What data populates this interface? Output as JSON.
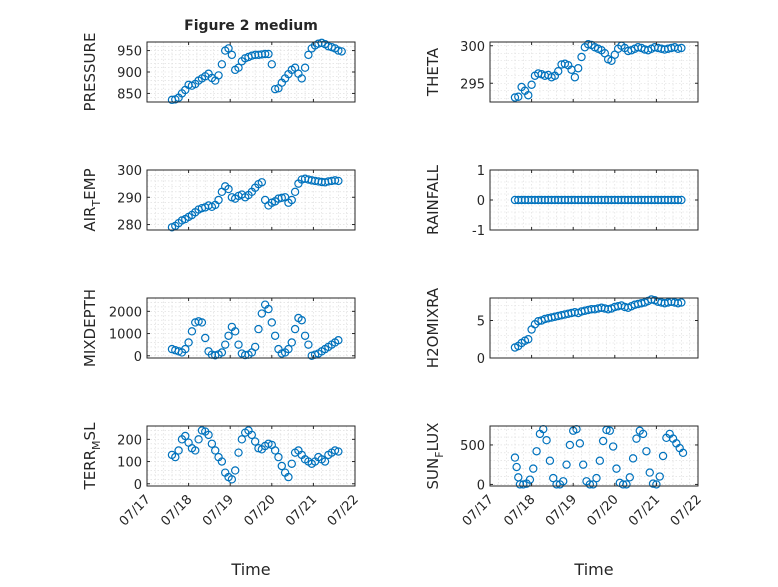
{
  "figure": {
    "title": "Figure 2 medium",
    "xlabel": "Time",
    "xticks": [
      "07/17",
      "07/18",
      "07/19",
      "07/20",
      "07/21",
      "07/22"
    ]
  },
  "chart_data": [
    {
      "type": "scatter",
      "title": "Figure 2 medium",
      "ylabel": "PRESSURE",
      "xlabel": "",
      "xlim": [
        0,
        5
      ],
      "ylim": [
        830,
        970
      ],
      "yticks": [
        850,
        900,
        950
      ],
      "ytick_labels": [
        "850",
        "900",
        "950"
      ],
      "grid": true,
      "color": "#0072bd",
      "x": [
        0.6,
        0.68,
        0.76,
        0.84,
        0.92,
        1.0,
        1.08,
        1.16,
        1.24,
        1.32,
        1.4,
        1.48,
        1.56,
        1.64,
        1.72,
        1.8,
        1.88,
        1.96,
        2.04,
        2.12,
        2.2,
        2.28,
        2.36,
        2.44,
        2.52,
        2.6,
        2.68,
        2.76,
        2.84,
        2.92,
        3.0,
        3.08,
        3.16,
        3.24,
        3.32,
        3.4,
        3.48,
        3.56,
        3.64,
        3.72,
        3.8,
        3.88,
        3.96,
        4.04,
        4.12,
        4.2,
        4.28,
        4.36,
        4.44,
        4.52,
        4.6,
        4.68
      ],
      "y": [
        835,
        836,
        840,
        850,
        858,
        870,
        868,
        872,
        880,
        885,
        890,
        896,
        886,
        880,
        892,
        918,
        950,
        955,
        940,
        905,
        910,
        925,
        932,
        935,
        938,
        940,
        940,
        941,
        942,
        942,
        918,
        860,
        862,
        875,
        885,
        895,
        905,
        910,
        896,
        885,
        910,
        940,
        955,
        962,
        966,
        968,
        965,
        960,
        958,
        955,
        950,
        948
      ]
    },
    {
      "type": "scatter",
      "ylabel": "THETA",
      "xlim": [
        0,
        5
      ],
      "ylim": [
        292.5,
        300.5
      ],
      "yticks": [
        295,
        300
      ],
      "ytick_labels": [
        "295",
        "300"
      ],
      "grid": true,
      "color": "#0072bd",
      "x": [
        0.6,
        0.68,
        0.76,
        0.84,
        0.92,
        1.0,
        1.08,
        1.16,
        1.24,
        1.32,
        1.4,
        1.48,
        1.56,
        1.64,
        1.72,
        1.8,
        1.88,
        1.96,
        2.04,
        2.12,
        2.2,
        2.28,
        2.36,
        2.44,
        2.52,
        2.6,
        2.68,
        2.76,
        2.84,
        2.92,
        3.0,
        3.08,
        3.16,
        3.24,
        3.32,
        3.4,
        3.48,
        3.56,
        3.64,
        3.72,
        3.8,
        3.88,
        3.96,
        4.04,
        4.12,
        4.2,
        4.28,
        4.36,
        4.44,
        4.52,
        4.6
      ],
      "y": [
        293.1,
        293.2,
        294.5,
        294.0,
        293.4,
        294.8,
        296.0,
        296.3,
        296.2,
        296.0,
        296.1,
        295.8,
        296.0,
        296.6,
        297.5,
        297.6,
        297.4,
        296.8,
        295.8,
        297.0,
        298.5,
        299.8,
        300.2,
        300.1,
        299.8,
        299.6,
        299.4,
        299.0,
        298.2,
        298.0,
        298.8,
        299.6,
        300.0,
        299.7,
        299.3,
        299.4,
        299.6,
        299.8,
        299.7,
        299.5,
        299.4,
        299.6,
        299.8,
        299.7,
        299.6,
        299.5,
        299.6,
        299.7,
        299.8,
        299.6,
        299.7
      ]
    },
    {
      "type": "scatter",
      "ylabel": "AIR_TEMP",
      "ylabel_main": "AIR",
      "ylabel_sub": "T",
      "ylabel_rest": "EMP",
      "xlim": [
        0,
        5
      ],
      "ylim": [
        278,
        300
      ],
      "yticks": [
        280,
        290,
        300
      ],
      "ytick_labels": [
        "280",
        "290",
        "300"
      ],
      "grid": true,
      "color": "#0072bd",
      "x": [
        0.6,
        0.68,
        0.76,
        0.84,
        0.92,
        1.0,
        1.08,
        1.16,
        1.24,
        1.32,
        1.4,
        1.48,
        1.56,
        1.64,
        1.72,
        1.8,
        1.88,
        1.96,
        2.04,
        2.12,
        2.2,
        2.28,
        2.36,
        2.44,
        2.52,
        2.6,
        2.68,
        2.76,
        2.84,
        2.92,
        3.0,
        3.08,
        3.16,
        3.24,
        3.32,
        3.4,
        3.48,
        3.56,
        3.64,
        3.72,
        3.8,
        3.88,
        3.96,
        4.04,
        4.12,
        4.2,
        4.28,
        4.36,
        4.44,
        4.52,
        4.6
      ],
      "y": [
        279,
        279.5,
        280.5,
        281.5,
        282.0,
        282.8,
        283.5,
        284.5,
        285.5,
        286.0,
        286.3,
        287.0,
        286.5,
        287.2,
        289.0,
        292.0,
        294.0,
        293.0,
        290.0,
        289.5,
        290.5,
        291.0,
        290.0,
        290.8,
        292.0,
        293.5,
        294.8,
        295.5,
        289.0,
        287.0,
        288.0,
        288.5,
        289.5,
        289.8,
        290.0,
        288.0,
        289.0,
        292.0,
        295.0,
        296.5,
        296.8,
        296.5,
        296.2,
        296.0,
        295.8,
        295.6,
        295.5,
        295.8,
        296.0,
        296.2,
        296.0
      ]
    },
    {
      "type": "scatter",
      "ylabel": "RAINFALL",
      "xlim": [
        0,
        5
      ],
      "ylim": [
        -1,
        1
      ],
      "yticks": [
        -1,
        0,
        1
      ],
      "ytick_labels": [
        "-1",
        "0",
        "1"
      ],
      "grid": true,
      "color": "#0072bd",
      "x": [
        0.6,
        0.68,
        0.76,
        0.84,
        0.92,
        1.0,
        1.08,
        1.16,
        1.24,
        1.32,
        1.4,
        1.48,
        1.56,
        1.64,
        1.72,
        1.8,
        1.88,
        1.96,
        2.04,
        2.12,
        2.2,
        2.28,
        2.36,
        2.44,
        2.52,
        2.6,
        2.68,
        2.76,
        2.84,
        2.92,
        3.0,
        3.08,
        3.16,
        3.24,
        3.32,
        3.4,
        3.48,
        3.56,
        3.64,
        3.72,
        3.8,
        3.88,
        3.96,
        4.04,
        4.12,
        4.2,
        4.28,
        4.36,
        4.44,
        4.52,
        4.6
      ],
      "y": [
        0,
        0,
        0,
        0,
        0,
        0,
        0,
        0,
        0,
        0,
        0,
        0,
        0,
        0,
        0,
        0,
        0,
        0,
        0,
        0,
        0,
        0,
        0,
        0,
        0,
        0,
        0,
        0,
        0,
        0,
        0,
        0,
        0,
        0,
        0,
        0,
        0,
        0,
        0,
        0,
        0,
        0,
        0,
        0,
        0,
        0,
        0,
        0,
        0,
        0,
        0
      ]
    },
    {
      "type": "scatter",
      "ylabel": "MIXDEPTH",
      "xlim": [
        0,
        5
      ],
      "ylim": [
        -100,
        2600
      ],
      "yticks": [
        0,
        1000,
        2000
      ],
      "ytick_labels": [
        "0",
        "1000",
        "2000"
      ],
      "grid": true,
      "color": "#0072bd",
      "x": [
        0.6,
        0.68,
        0.76,
        0.84,
        0.92,
        1.0,
        1.08,
        1.16,
        1.24,
        1.32,
        1.4,
        1.48,
        1.56,
        1.64,
        1.72,
        1.8,
        1.88,
        1.96,
        2.04,
        2.12,
        2.2,
        2.28,
        2.36,
        2.44,
        2.52,
        2.6,
        2.68,
        2.76,
        2.84,
        2.92,
        3.0,
        3.08,
        3.16,
        3.24,
        3.32,
        3.4,
        3.48,
        3.56,
        3.64,
        3.72,
        3.8,
        3.88,
        3.96,
        4.04,
        4.12,
        4.2,
        4.28,
        4.36,
        4.44,
        4.52,
        4.6
      ],
      "y": [
        300,
        250,
        200,
        150,
        300,
        600,
        1100,
        1500,
        1550,
        1500,
        800,
        200,
        50,
        20,
        60,
        150,
        500,
        900,
        1300,
        1100,
        500,
        100,
        30,
        50,
        150,
        400,
        1200,
        1900,
        2300,
        2100,
        1500,
        900,
        300,
        100,
        150,
        300,
        600,
        1200,
        1700,
        1600,
        900,
        500,
        0,
        50,
        100,
        200,
        300,
        400,
        500,
        600,
        700
      ]
    },
    {
      "type": "scatter",
      "ylabel": "H2OMIXRA",
      "xlim": [
        0,
        5
      ],
      "ylim": [
        0,
        8
      ],
      "yticks": [
        0,
        5
      ],
      "ytick_labels": [
        "0",
        "5"
      ],
      "grid": true,
      "color": "#0072bd",
      "x": [
        0.6,
        0.68,
        0.76,
        0.84,
        0.92,
        1.0,
        1.08,
        1.16,
        1.24,
        1.32,
        1.4,
        1.48,
        1.56,
        1.64,
        1.72,
        1.8,
        1.88,
        1.96,
        2.04,
        2.12,
        2.2,
        2.28,
        2.36,
        2.44,
        2.52,
        2.6,
        2.68,
        2.76,
        2.84,
        2.92,
        3.0,
        3.08,
        3.16,
        3.24,
        3.32,
        3.4,
        3.48,
        3.56,
        3.64,
        3.72,
        3.8,
        3.88,
        3.96,
        4.04,
        4.12,
        4.2,
        4.28,
        4.36,
        4.44,
        4.52,
        4.6
      ],
      "y": [
        1.4,
        1.6,
        2.0,
        2.3,
        2.5,
        3.8,
        4.5,
        4.9,
        5.0,
        5.2,
        5.3,
        5.4,
        5.5,
        5.6,
        5.7,
        5.8,
        5.9,
        6.0,
        6.1,
        6.0,
        6.2,
        6.3,
        6.4,
        6.5,
        6.5,
        6.6,
        6.7,
        6.6,
        6.5,
        6.6,
        6.8,
        6.9,
        7.0,
        6.8,
        6.7,
        6.9,
        7.1,
        7.2,
        7.3,
        7.4,
        7.6,
        7.8,
        7.7,
        7.5,
        7.4,
        7.3,
        7.4,
        7.5,
        7.4,
        7.3,
        7.4
      ]
    },
    {
      "type": "scatter",
      "ylabel": "TERR_MSL",
      "ylabel_main": "TERR",
      "ylabel_sub": "M",
      "ylabel_rest": "SL",
      "xlim": [
        0,
        5
      ],
      "ylim": [
        -10,
        260
      ],
      "yticks": [
        0,
        100,
        200
      ],
      "ytick_labels": [
        "0",
        "100",
        "200"
      ],
      "grid": true,
      "color": "#0072bd",
      "x": [
        0.6,
        0.68,
        0.76,
        0.84,
        0.92,
        1.0,
        1.08,
        1.16,
        1.24,
        1.32,
        1.4,
        1.48,
        1.56,
        1.64,
        1.72,
        1.8,
        1.88,
        1.96,
        2.04,
        2.12,
        2.2,
        2.28,
        2.36,
        2.44,
        2.52,
        2.6,
        2.68,
        2.76,
        2.84,
        2.92,
        3.0,
        3.08,
        3.16,
        3.24,
        3.32,
        3.4,
        3.48,
        3.56,
        3.64,
        3.72,
        3.8,
        3.88,
        3.96,
        4.04,
        4.12,
        4.2,
        4.28,
        4.36,
        4.44,
        4.52,
        4.6
      ],
      "y": [
        130,
        120,
        150,
        200,
        215,
        185,
        160,
        150,
        200,
        240,
        235,
        220,
        180,
        150,
        120,
        100,
        50,
        30,
        20,
        60,
        140,
        200,
        230,
        240,
        220,
        190,
        160,
        155,
        170,
        180,
        175,
        150,
        120,
        80,
        50,
        30,
        90,
        140,
        150,
        130,
        110,
        100,
        90,
        100,
        120,
        110,
        100,
        130,
        140,
        150,
        145
      ]
    },
    {
      "type": "scatter",
      "ylabel": "SUN_FLUX",
      "ylabel_main": "SUN",
      "ylabel_sub": "F",
      "ylabel_rest": "LUX",
      "xlim": [
        0,
        5
      ],
      "ylim": [
        -20,
        740
      ],
      "yticks": [
        0,
        500
      ],
      "ytick_labels": [
        "0",
        "500"
      ],
      "grid": true,
      "color": "#0072bd",
      "x": [
        0.6,
        0.64,
        0.68,
        0.72,
        0.8,
        0.88,
        0.96,
        1.04,
        1.12,
        1.2,
        1.28,
        1.36,
        1.44,
        1.52,
        1.6,
        1.68,
        1.76,
        1.84,
        1.92,
        2.0,
        2.08,
        2.16,
        2.24,
        2.32,
        2.4,
        2.48,
        2.56,
        2.64,
        2.72,
        2.8,
        2.88,
        2.96,
        3.04,
        3.12,
        3.2,
        3.28,
        3.36,
        3.44,
        3.52,
        3.6,
        3.68,
        3.76,
        3.84,
        3.92,
        4.0,
        4.08,
        4.16,
        4.24,
        4.32,
        4.4,
        4.48,
        4.56,
        4.64
      ],
      "y": [
        340,
        220,
        90,
        0,
        0,
        10,
        60,
        200,
        420,
        640,
        700,
        560,
        300,
        80,
        0,
        0,
        40,
        250,
        500,
        680,
        700,
        520,
        250,
        40,
        0,
        0,
        80,
        300,
        550,
        690,
        680,
        480,
        200,
        20,
        0,
        0,
        90,
        330,
        580,
        680,
        640,
        420,
        150,
        10,
        0,
        100,
        360,
        590,
        640,
        580,
        520,
        460,
        400
      ]
    }
  ]
}
